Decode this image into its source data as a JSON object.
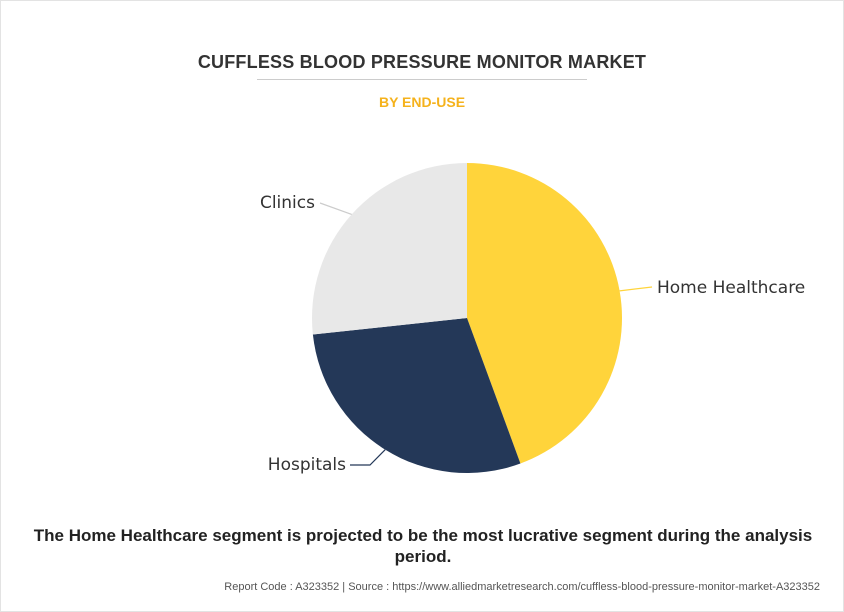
{
  "chart_data": {
    "type": "pie",
    "title": "CUFFLESS BLOOD PRESSURE MONITOR MARKET",
    "subtitle": "BY END-USE",
    "categories": [
      "Home Healthcare",
      "Hospitals",
      "Clinics"
    ],
    "values": [
      44.4,
      28.9,
      26.7
    ],
    "colors": [
      "#ffd43b",
      "#243858",
      "#e8e8e8"
    ],
    "legend": "none (direct labels)"
  },
  "note": "The Home Healthcare segment is projected to be the most lucrative segment during the analysis period.",
  "footer": "Report Code : A323352  |  Source : https://www.alliedmarketresearch.com/cuffless-blood-pressure-monitor-market-A323352"
}
